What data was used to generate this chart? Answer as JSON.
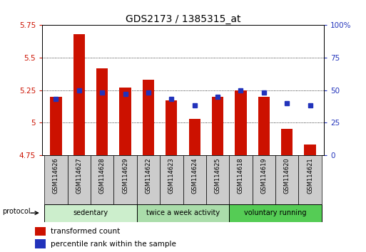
{
  "title": "GDS2173 / 1385315_at",
  "samples": [
    "GSM114626",
    "GSM114627",
    "GSM114628",
    "GSM114629",
    "GSM114622",
    "GSM114623",
    "GSM114624",
    "GSM114625",
    "GSM114618",
    "GSM114619",
    "GSM114620",
    "GSM114621"
  ],
  "red_values": [
    5.2,
    5.68,
    5.42,
    5.27,
    5.33,
    5.17,
    5.03,
    5.2,
    5.25,
    5.2,
    4.95,
    4.83
  ],
  "blue_values": [
    43,
    50,
    48,
    47,
    48,
    43,
    38,
    45,
    50,
    48,
    40,
    38
  ],
  "ylim_left": [
    4.75,
    5.75
  ],
  "ylim_right": [
    0,
    100
  ],
  "yticks_left": [
    4.75,
    5.0,
    5.25,
    5.5,
    5.75
  ],
  "yticks_right": [
    0,
    25,
    50,
    75,
    100
  ],
  "ytick_labels_left": [
    "4.75",
    "5",
    "5.25",
    "5.5",
    "5.75"
  ],
  "ytick_labels_right": [
    "0",
    "25",
    "50",
    "75",
    "100%"
  ],
  "bar_bottom": 4.75,
  "red_color": "#cc1100",
  "blue_color": "#2233bb",
  "groups": [
    {
      "label": "sedentary",
      "indices": [
        0,
        1,
        2,
        3
      ],
      "color": "#cceecc"
    },
    {
      "label": "twice a week activity",
      "indices": [
        4,
        5,
        6,
        7
      ],
      "color": "#aaddaa"
    },
    {
      "label": "voluntary running",
      "indices": [
        8,
        9,
        10,
        11
      ],
      "color": "#55cc55"
    }
  ],
  "legend_items": [
    {
      "color": "#cc1100",
      "label": "transformed count"
    },
    {
      "color": "#2233bb",
      "label": "percentile rank within the sample"
    }
  ],
  "protocol_label": "protocol",
  "background_color": "#ffffff",
  "plot_bg": "#ffffff",
  "left_tick_color": "#cc1100",
  "right_tick_color": "#2233bb",
  "sample_box_color": "#cccccc",
  "bar_width": 0.5
}
